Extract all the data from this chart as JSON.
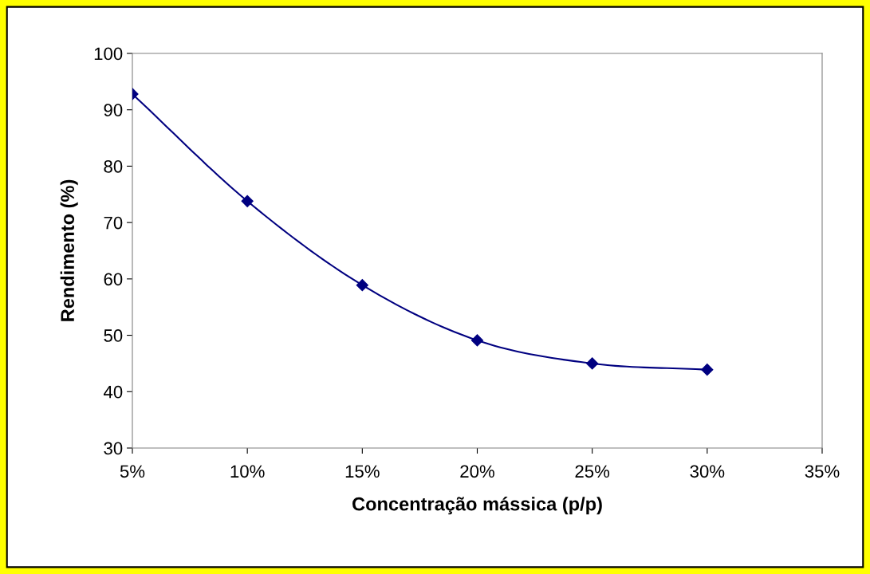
{
  "chart_data": {
    "type": "line",
    "xlabel": "Concentração mássica (p/p)",
    "ylabel": "Rendimento (%)",
    "x": [
      5,
      10,
      15,
      20,
      25,
      30
    ],
    "series": [
      {
        "color": "#000080",
        "values": [
          92.8,
          73.8,
          58.9,
          49.1,
          45.0,
          43.9
        ]
      }
    ],
    "xlim": [
      5,
      35
    ],
    "xticks": [
      {
        "value": 5,
        "label": "5%"
      },
      {
        "value": 10,
        "label": "10%"
      },
      {
        "value": 15,
        "label": "15%"
      },
      {
        "value": 20,
        "label": "20%"
      },
      {
        "value": 25,
        "label": "25%"
      },
      {
        "value": 30,
        "label": "30%"
      },
      {
        "value": 35,
        "label": "35%"
      }
    ],
    "ylim": [
      30,
      100
    ],
    "yticks": [
      30,
      40,
      50,
      60,
      70,
      80,
      90,
      100
    ],
    "grid": false,
    "marker": "diamond",
    "line_style": "solid"
  }
}
